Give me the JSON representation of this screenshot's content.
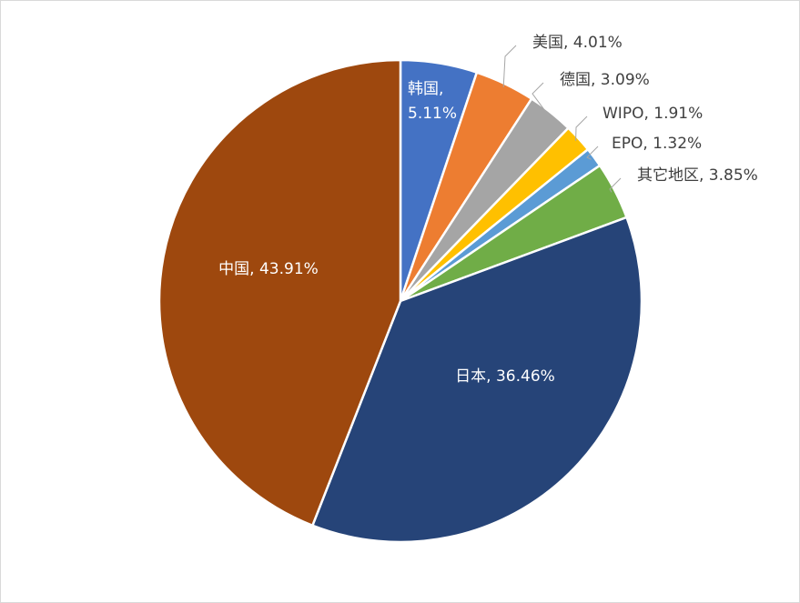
{
  "chart_data": {
    "type": "pie",
    "values": [
      5.11,
      4.01,
      3.09,
      1.91,
      1.32,
      3.85,
      36.46,
      43.91
    ],
    "value_labels": [
      "韩国, 5.11%",
      "美国, 4.01%",
      "德国, 3.09%",
      "WIPO, 1.91%",
      "EPO, 1.32%",
      "其它地区, 3.85%",
      "日本, 36.46%",
      "中国, 43.91%"
    ],
    "colors": [
      "#4472c4",
      "#ed7d31",
      "#a5a5a5",
      "#ffc000",
      "#5b9bd5",
      "#70ad47",
      "#264478",
      "#9e480e"
    ]
  }
}
